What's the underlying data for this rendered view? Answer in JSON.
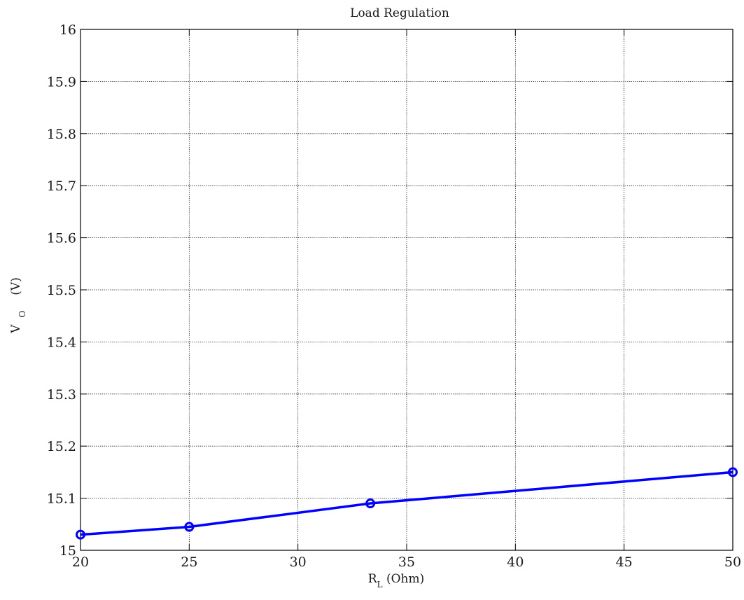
{
  "chart_data": {
    "type": "line",
    "title": "Load Regulation",
    "xlabel": {
      "main": "R",
      "sub": "L",
      "rest": " (Ohm)"
    },
    "ylabel": {
      "main": "V",
      "sub": "O",
      "rest": "(V)"
    },
    "xlim": [
      20,
      50
    ],
    "ylim": [
      15,
      16
    ],
    "xticks": [
      20,
      25,
      30,
      35,
      40,
      45,
      50
    ],
    "yticks": [
      15,
      15.1,
      15.2,
      15.3,
      15.4,
      15.5,
      15.6,
      15.7,
      15.8,
      15.9,
      16
    ],
    "xtick_labels": [
      "20",
      "25",
      "30",
      "35",
      "40",
      "45",
      "50"
    ],
    "ytick_labels": [
      "15",
      "15.1",
      "15.2",
      "15.3",
      "15.4",
      "15.5",
      "15.6",
      "15.7",
      "15.8",
      "15.9",
      "16"
    ],
    "grid": true,
    "series": [
      {
        "x": [
          20,
          25,
          33.33,
          50
        ],
        "y": [
          15.03,
          15.045,
          15.09,
          15.15
        ],
        "color": "#0000ff",
        "marker": "circle"
      }
    ]
  }
}
